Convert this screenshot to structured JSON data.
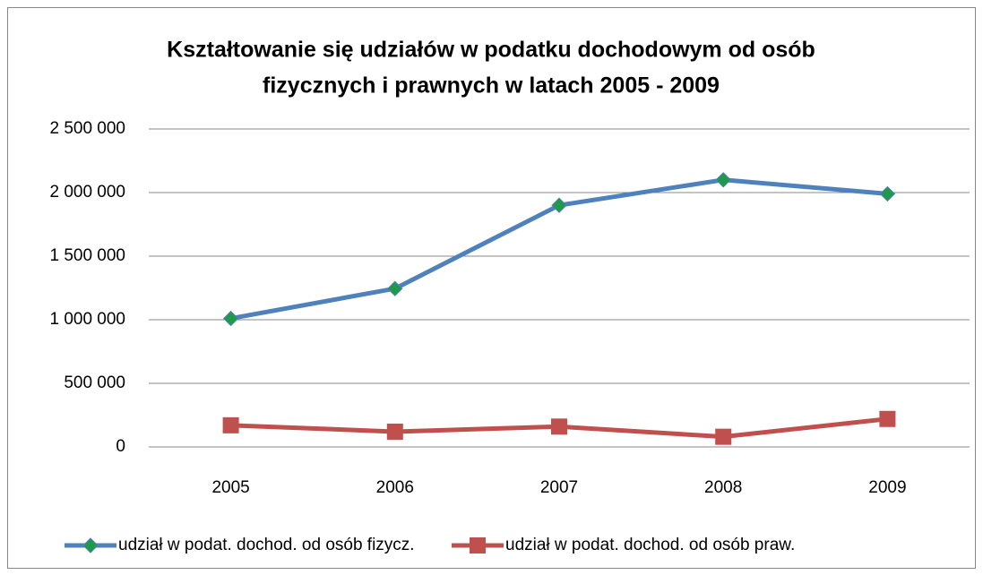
{
  "chart_data": {
    "type": "line",
    "title": [
      "Kształtowanie się udziałów w podatku dochodowym od osób",
      "fizycznych i prawnych w latach 2005 - 2009"
    ],
    "categories": [
      "2005",
      "2006",
      "2007",
      "2008",
      "2009"
    ],
    "series": [
      {
        "name": "udział w podat. dochod. od osób fizycz.",
        "color": "#4f81bd",
        "marker": "diamond",
        "marker_color": "#1f9a4a",
        "values": [
          1010000,
          1245000,
          1900000,
          2100000,
          1990000
        ]
      },
      {
        "name": "udział w podat. dochod. od osób praw.",
        "color": "#c0504d",
        "marker": "square",
        "marker_color": "#c0504d",
        "values": [
          170000,
          120000,
          160000,
          80000,
          220000
        ]
      }
    ],
    "ylim": [
      0,
      2500000
    ],
    "yticks": [
      0,
      {
        "value": 500000,
        "label": "500 000"
      },
      {
        "value": 1000000,
        "label": "1 000 000"
      },
      {
        "value": 1500000,
        "label": "1 500 000"
      },
      {
        "value": 2000000,
        "label": "2 000 000"
      },
      {
        "value": 2500000,
        "label": "2 500 000"
      }
    ],
    "grid": true,
    "legend": "bottom"
  }
}
